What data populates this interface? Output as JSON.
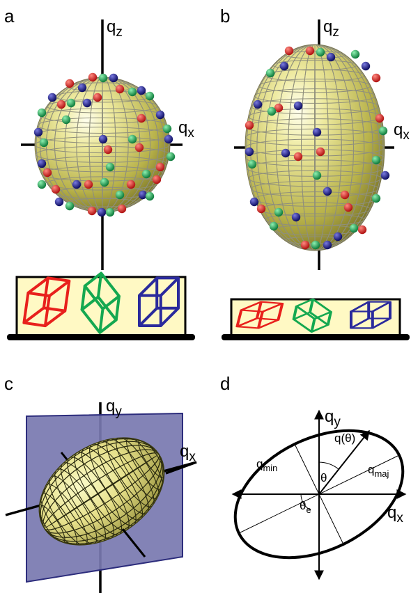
{
  "panels": {
    "a": {
      "letter": "a",
      "axis_vertical": {
        "main": "q",
        "sub": "z"
      },
      "axis_horizontal": {
        "main": "q",
        "sub": "x"
      }
    },
    "b": {
      "letter": "b",
      "axis_vertical": {
        "main": "q",
        "sub": "z"
      },
      "axis_horizontal": {
        "main": "q",
        "sub": "x"
      }
    },
    "c": {
      "letter": "c",
      "axis_vertical": {
        "main": "q",
        "sub": "y"
      },
      "axis_horizontal": {
        "main": "q",
        "sub": "x"
      }
    },
    "d": {
      "letter": "d",
      "axis_vertical": {
        "main": "q",
        "sub": "y"
      },
      "axis_horizontal": {
        "main": "q",
        "sub": "x"
      },
      "q_theta": "q(θ)",
      "q_min": {
        "main": "q",
        "sub": "min"
      },
      "q_maj": {
        "main": "q",
        "sub": "maj"
      },
      "theta": "θ",
      "theta_e": {
        "main": "θ",
        "sub": "e"
      }
    }
  },
  "colors": {
    "sphere": "#d8d46a",
    "sphere_grid": "#8a8a7a",
    "particle_red": "#e0201c",
    "particle_green": "#1ea85a",
    "particle_blue": "#1c1c8c",
    "box_fill": "#fff9c4",
    "cube_red": "#e8201c",
    "cube_green": "#14a850",
    "cube_blue": "#2a2a9c",
    "plane": "#6e6ea8"
  }
}
